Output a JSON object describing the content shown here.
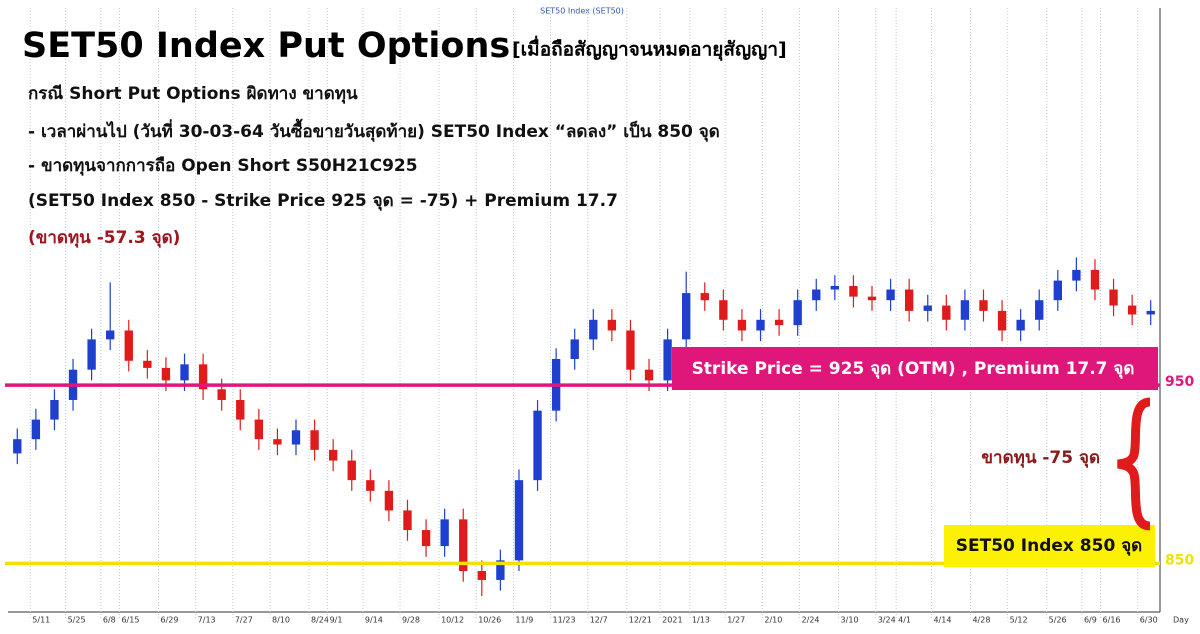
{
  "chart_data": {
    "type": "candlestick",
    "header": "SET50 Index (SET50)",
    "title": "SET50 Index Put Options",
    "title_note": "[เมื่อถือสัญญาจนหมดอายุสัญญา]",
    "lines": [
      "กรณี Short Put Options ผิดทาง ขาดทุน",
      "- เวลาผ่านไป (วันที่ 30-03-64 วันซื้อขายวันสุดท้าย) SET50 Index “ลดลง” เป็น 850 จุด",
      "- ขาดทุนจากการถือ Open Short S50H21C925",
      "(SET50 Index 850 - Strike Price 925 จุด = -75) + Premium 17.7"
    ],
    "loss_note": "(ขาดทุน -57.3 จุด)",
    "strike_box": "Strike Price = 925 จุด (OTM) , Premium 17.7  จุด",
    "loss_label": "ขาดทุน -75 จุด",
    "index_box": "SET50 Index 850 จุด",
    "x_label": "Day",
    "up_color": "#1f3fcf",
    "down_color": "#e01b1b",
    "open": [
      910,
      918,
      929,
      940,
      957,
      974,
      979,
      962,
      958,
      951,
      960,
      946,
      940,
      929,
      918,
      915,
      923,
      912,
      906,
      895,
      889,
      878,
      867,
      858,
      873,
      844,
      839,
      850,
      895,
      934,
      963,
      974,
      985,
      979,
      957,
      951,
      974,
      1000,
      996,
      985,
      979,
      985,
      982,
      996,
      1002,
      1004,
      998,
      996,
      1002,
      990,
      993,
      985,
      996,
      990,
      979,
      985,
      996,
      1007,
      1013,
      1002,
      993,
      988
    ],
    "high": [
      924,
      935,
      946,
      963,
      980,
      1006,
      985,
      968,
      964,
      966,
      966,
      952,
      946,
      935,
      924,
      929,
      929,
      918,
      912,
      901,
      895,
      884,
      873,
      879,
      879,
      850,
      856,
      901,
      940,
      969,
      980,
      991,
      991,
      985,
      963,
      980,
      1012,
      1006,
      1002,
      991,
      991,
      991,
      1002,
      1008,
      1010,
      1010,
      1004,
      1008,
      1008,
      999,
      999,
      1002,
      1002,
      996,
      991,
      1002,
      1013,
      1020,
      1019,
      1008,
      999,
      996
    ],
    "low": [
      904,
      912,
      923,
      934,
      951,
      968,
      956,
      952,
      945,
      945,
      940,
      934,
      923,
      912,
      909,
      909,
      906,
      900,
      889,
      883,
      872,
      861,
      852,
      852,
      838,
      830,
      833,
      844,
      889,
      928,
      957,
      968,
      973,
      951,
      945,
      945,
      968,
      990,
      979,
      973,
      973,
      976,
      976,
      990,
      996,
      992,
      990,
      990,
      984,
      984,
      979,
      979,
      984,
      973,
      973,
      979,
      990,
      1001,
      996,
      987,
      982,
      982
    ],
    "close": [
      918,
      929,
      940,
      957,
      974,
      979,
      962,
      958,
      951,
      960,
      946,
      940,
      929,
      918,
      915,
      923,
      912,
      906,
      895,
      889,
      878,
      867,
      858,
      873,
      844,
      839,
      850,
      895,
      934,
      963,
      974,
      985,
      979,
      957,
      951,
      974,
      1000,
      996,
      985,
      979,
      985,
      982,
      996,
      1002,
      1004,
      998,
      996,
      1002,
      990,
      993,
      985,
      996,
      990,
      979,
      985,
      996,
      1007,
      1013,
      1002,
      993,
      988,
      990
    ],
    "xlim": [
      0,
      62
    ],
    "xticks": [
      {
        "value": 1.2,
        "label": "5/11"
      },
      {
        "value": 3.1,
        "label": "5/25"
      },
      {
        "value": 5.0,
        "label": "6/8"
      },
      {
        "value": 6.0,
        "label": "6/15"
      },
      {
        "value": 8.1,
        "label": "6/29"
      },
      {
        "value": 10.1,
        "label": "7/13"
      },
      {
        "value": 12.1,
        "label": "7/27"
      },
      {
        "value": 14.1,
        "label": "8/10"
      },
      {
        "value": 16.2,
        "label": "8/24"
      },
      {
        "value": 17.2,
        "label": "9/1"
      },
      {
        "value": 19.1,
        "label": "9/14"
      },
      {
        "value": 21.1,
        "label": "9/28"
      },
      {
        "value": 23.2,
        "label": "10/12"
      },
      {
        "value": 25.2,
        "label": "10/26"
      },
      {
        "value": 27.2,
        "label": "11/9"
      },
      {
        "value": 29.2,
        "label": "11/23"
      },
      {
        "value": 31.2,
        "label": "12/7"
      },
      {
        "value": 33.3,
        "label": "12/21"
      },
      {
        "value": 35.1,
        "label": "2021"
      },
      {
        "value": 36.7,
        "label": "1/13"
      },
      {
        "value": 38.6,
        "label": "1/27"
      },
      {
        "value": 40.6,
        "label": "2/10"
      },
      {
        "value": 42.6,
        "label": "2/24"
      },
      {
        "value": 44.7,
        "label": "3/10"
      },
      {
        "value": 46.7,
        "label": "3/24"
      },
      {
        "value": 47.8,
        "label": "4/1"
      },
      {
        "value": 49.7,
        "label": "4/14"
      },
      {
        "value": 51.8,
        "label": "4/28"
      },
      {
        "value": 53.8,
        "label": "5/12"
      },
      {
        "value": 55.9,
        "label": "5/26"
      },
      {
        "value": 57.8,
        "label": "6/9"
      },
      {
        "value": 58.8,
        "label": "6/16"
      },
      {
        "value": 60.8,
        "label": "6/30"
      }
    ],
    "ylim": [
      821,
      1160
    ],
    "yticks": [
      850,
      950
    ],
    "ytick_colors": [
      "#f2e200",
      "#e0177a"
    ]
  }
}
